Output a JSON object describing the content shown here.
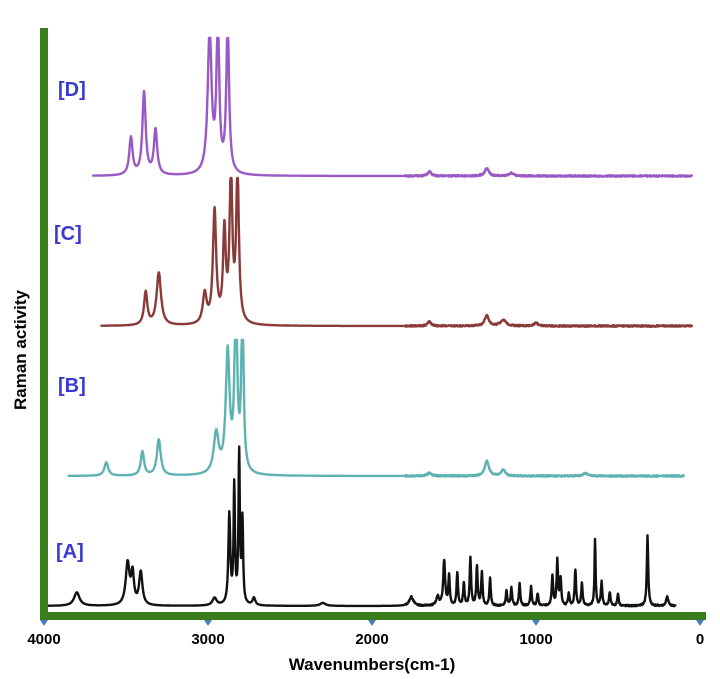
{
  "chart_data": {
    "type": "line",
    "title": "",
    "xlabel": "Wavenumbers(cm-1)",
    "ylabel": "Raman activity",
    "xlim": [
      4000,
      0
    ],
    "x_reversed": true,
    "x_ticks": [
      4000,
      3000,
      2000,
      1000,
      0
    ],
    "x_tick_labels": [
      "4000",
      "3000",
      "2000",
      "1000",
      "0"
    ],
    "y_ticks_shown": false,
    "grid": false,
    "axis_color": "#3a7d1e",
    "tick_marker_color": "#4a7fc1",
    "series": [
      {
        "name": "[A]",
        "color": "#111111",
        "baseline": 0.0,
        "x_range": [
          4000,
          150
        ],
        "peaks": [
          {
            "x": 3800,
            "h": 0.09,
            "w": 20
          },
          {
            "x": 3490,
            "h": 0.28,
            "w": 14
          },
          {
            "x": 3460,
            "h": 0.2,
            "w": 10
          },
          {
            "x": 3410,
            "h": 0.22,
            "w": 12
          },
          {
            "x": 2960,
            "h": 0.05,
            "w": 15
          },
          {
            "x": 2870,
            "h": 0.6,
            "w": 7
          },
          {
            "x": 2840,
            "h": 0.78,
            "w": 5
          },
          {
            "x": 2810,
            "h": 1.0,
            "w": 5
          },
          {
            "x": 2790,
            "h": 0.55,
            "w": 5
          },
          {
            "x": 2720,
            "h": 0.05,
            "w": 10
          },
          {
            "x": 2300,
            "h": 0.02,
            "w": 20
          },
          {
            "x": 1760,
            "h": 0.06,
            "w": 15
          },
          {
            "x": 1600,
            "h": 0.06,
            "w": 10
          },
          {
            "x": 1560,
            "h": 0.3,
            "w": 7
          },
          {
            "x": 1530,
            "h": 0.2,
            "w": 5
          },
          {
            "x": 1480,
            "h": 0.22,
            "w": 5
          },
          {
            "x": 1440,
            "h": 0.15,
            "w": 5
          },
          {
            "x": 1400,
            "h": 0.32,
            "w": 5
          },
          {
            "x": 1360,
            "h": 0.26,
            "w": 5
          },
          {
            "x": 1330,
            "h": 0.22,
            "w": 5
          },
          {
            "x": 1280,
            "h": 0.18,
            "w": 5
          },
          {
            "x": 1180,
            "h": 0.1,
            "w": 5
          },
          {
            "x": 1150,
            "h": 0.12,
            "w": 5
          },
          {
            "x": 1100,
            "h": 0.15,
            "w": 5
          },
          {
            "x": 1030,
            "h": 0.13,
            "w": 5
          },
          {
            "x": 990,
            "h": 0.08,
            "w": 5
          },
          {
            "x": 900,
            "h": 0.2,
            "w": 5
          },
          {
            "x": 870,
            "h": 0.3,
            "w": 5
          },
          {
            "x": 850,
            "h": 0.18,
            "w": 5
          },
          {
            "x": 800,
            "h": 0.08,
            "w": 5
          },
          {
            "x": 760,
            "h": 0.24,
            "w": 5
          },
          {
            "x": 720,
            "h": 0.15,
            "w": 5
          },
          {
            "x": 640,
            "h": 0.44,
            "w": 4
          },
          {
            "x": 600,
            "h": 0.16,
            "w": 5
          },
          {
            "x": 550,
            "h": 0.09,
            "w": 5
          },
          {
            "x": 500,
            "h": 0.08,
            "w": 5
          },
          {
            "x": 320,
            "h": 0.47,
            "w": 5
          },
          {
            "x": 200,
            "h": 0.06,
            "w": 8
          }
        ]
      },
      {
        "name": "[B]",
        "color": "#5fb2b2",
        "baseline": 0.0,
        "x_range": [
          3850,
          100
        ],
        "peaks": [
          {
            "x": 3620,
            "h": 0.09,
            "w": 14
          },
          {
            "x": 3400,
            "h": 0.16,
            "w": 12
          },
          {
            "x": 3300,
            "h": 0.24,
            "w": 14
          },
          {
            "x": 2950,
            "h": 0.27,
            "w": 18
          },
          {
            "x": 2880,
            "h": 0.8,
            "w": 14
          },
          {
            "x": 2830,
            "h": 1.15,
            "w": 10
          },
          {
            "x": 2790,
            "h": 1.15,
            "w": 8
          },
          {
            "x": 1650,
            "h": 0.02,
            "w": 15
          },
          {
            "x": 1300,
            "h": 0.1,
            "w": 15
          },
          {
            "x": 1200,
            "h": 0.04,
            "w": 15
          },
          {
            "x": 700,
            "h": 0.02,
            "w": 15
          }
        ]
      },
      {
        "name": "[C]",
        "color": "#8b3a3a",
        "baseline": 0.0,
        "x_range": [
          3650,
          50
        ],
        "peaks": [
          {
            "x": 3380,
            "h": 0.22,
            "w": 12
          },
          {
            "x": 3300,
            "h": 0.35,
            "w": 16
          },
          {
            "x": 3020,
            "h": 0.2,
            "w": 14
          },
          {
            "x": 2960,
            "h": 0.75,
            "w": 12
          },
          {
            "x": 2900,
            "h": 0.6,
            "w": 10
          },
          {
            "x": 2860,
            "h": 1.0,
            "w": 10
          },
          {
            "x": 2820,
            "h": 1.0,
            "w": 10
          },
          {
            "x": 1650,
            "h": 0.03,
            "w": 12
          },
          {
            "x": 1300,
            "h": 0.07,
            "w": 15
          },
          {
            "x": 1200,
            "h": 0.04,
            "w": 20
          },
          {
            "x": 1000,
            "h": 0.02,
            "w": 15
          }
        ]
      },
      {
        "name": "[D]",
        "color": "#9b59c4",
        "baseline": 0.0,
        "x_range": [
          3700,
          50
        ],
        "peaks": [
          {
            "x": 3470,
            "h": 0.25,
            "w": 12
          },
          {
            "x": 3390,
            "h": 0.55,
            "w": 12
          },
          {
            "x": 3320,
            "h": 0.3,
            "w": 12
          },
          {
            "x": 2990,
            "h": 0.95,
            "w": 14
          },
          {
            "x": 2940,
            "h": 1.0,
            "w": 10
          },
          {
            "x": 2880,
            "h": 1.0,
            "w": 10
          },
          {
            "x": 1650,
            "h": 0.03,
            "w": 12
          },
          {
            "x": 1300,
            "h": 0.05,
            "w": 15
          },
          {
            "x": 1150,
            "h": 0.02,
            "w": 15
          }
        ]
      }
    ]
  }
}
